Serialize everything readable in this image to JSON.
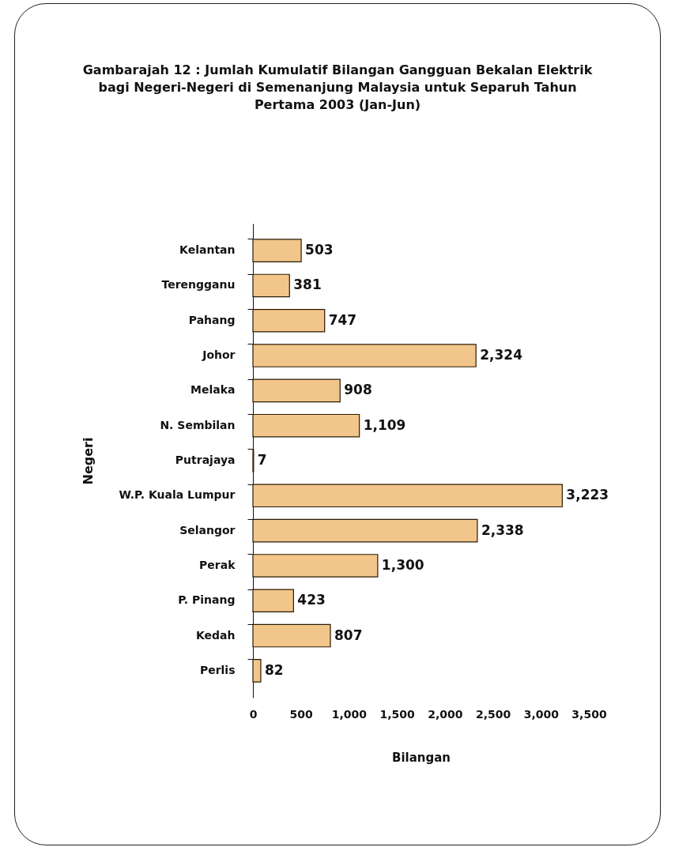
{
  "chart_data": {
    "type": "bar",
    "orientation": "horizontal",
    "title": "Gambarajah 12 : Jumlah Kumulatif Bilangan Gangguan Bekalan Elektrik\nbagi Negeri-Negeri di Semenanjung Malaysia untuk Separuh Tahun\nPertama 2003 (Jan-Jun)",
    "xlabel": "Bilangan",
    "ylabel": "Negeri",
    "categories": [
      "Kelantan",
      "Terengganu",
      "Pahang",
      "Johor",
      "Melaka",
      "N. Sembilan",
      "Putrajaya",
      "W.P. Kuala Lumpur",
      "Selangor",
      "Perak",
      "P. Pinang",
      "Kedah",
      "Perlis"
    ],
    "values": [
      503,
      381,
      747,
      2324,
      908,
      1109,
      7,
      3223,
      2338,
      1300,
      423,
      807,
      82
    ],
    "value_labels": [
      "503",
      "381",
      "747",
      "2,324",
      "908",
      "1,109",
      "7",
      "3,223",
      "2,338",
      "1,300",
      "423",
      "807",
      "82"
    ],
    "color": "#f2c68a",
    "xlim": [
      0,
      3500
    ],
    "xticks": [
      0,
      500,
      {
        "value": 1000,
        "label": "1,000"
      },
      {
        "value": 1500,
        "label": "1,500"
      },
      {
        "value": 2000,
        "label": "2,000"
      },
      {
        "value": 2500,
        "label": "2,500"
      },
      {
        "value": 3000,
        "label": "3,000"
      },
      {
        "value": 3500,
        "label": "3,500"
      }
    ],
    "grid": false
  }
}
